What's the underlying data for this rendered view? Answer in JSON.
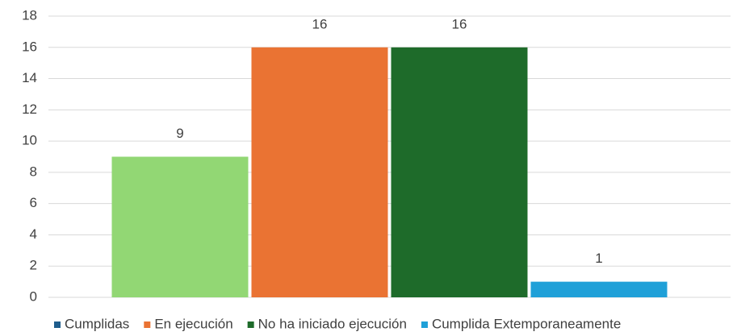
{
  "chart_data": {
    "type": "bar",
    "series": [
      {
        "name": "Cumplidas",
        "color": "#92d774",
        "legend_color": "#1f5d8c",
        "values": [
          9
        ]
      },
      {
        "name": "En ejecución",
        "color": "#ea7333",
        "legend_color": "#ea7333",
        "values": [
          16
        ]
      },
      {
        "name": "No ha iniciado ejecución",
        "color": "#1e6b2a",
        "legend_color": "#1e6b2a",
        "values": [
          16
        ]
      },
      {
        "name": "Cumplida Extemporaneamente",
        "color": "#1fa0d8",
        "legend_color": "#1fa0d8",
        "values": [
          1
        ]
      }
    ],
    "ylim": [
      0,
      18
    ],
    "yticks": [
      0,
      2,
      4,
      6,
      8,
      10,
      12,
      14,
      16,
      18
    ],
    "grid": true,
    "legend": "bottom"
  }
}
